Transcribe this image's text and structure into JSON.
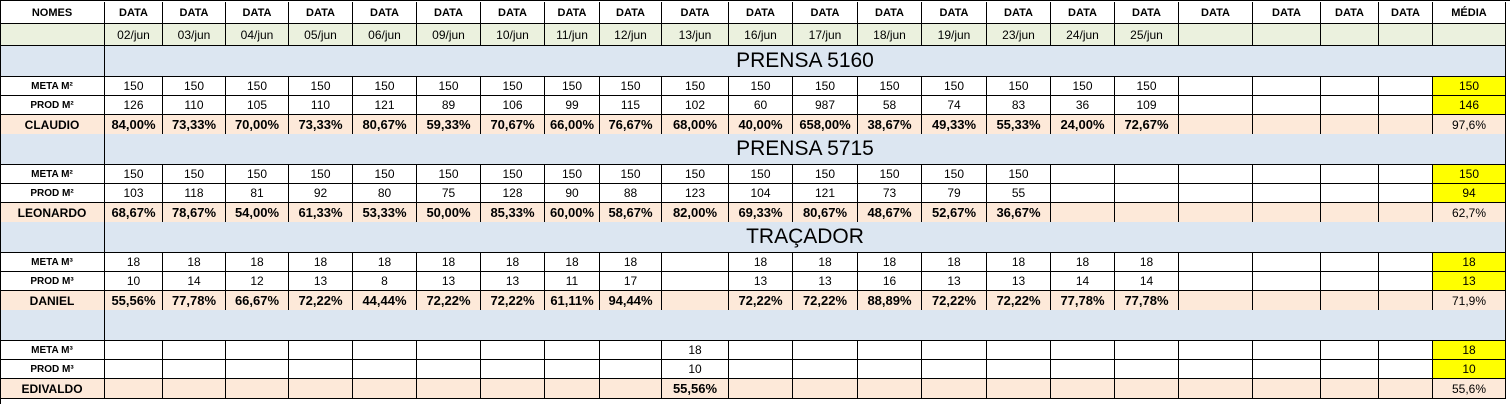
{
  "header": {
    "names_label": "NOMES",
    "date_labels": [
      "DATA",
      "DATA",
      "DATA",
      "DATA",
      "DATA",
      "DATA",
      "DATA",
      "DATA",
      "DATA",
      "DATA",
      "DATA",
      "DATA",
      "DATA",
      "DATA",
      "DATA",
      "DATA",
      "DATA",
      "DATA",
      "DATA",
      "DATA",
      "DATA"
    ],
    "average_label": "MÉDIA",
    "dates": [
      "02/jun",
      "03/jun",
      "04/jun",
      "05/jun",
      "06/jun",
      "09/jun",
      "10/jun",
      "11/jun",
      "12/jun",
      "13/jun",
      "16/jun",
      "17/jun",
      "18/jun",
      "19/jun",
      "23/jun",
      "24/jun",
      "25/jun",
      "",
      "",
      "",
      ""
    ]
  },
  "colors": {
    "header_green": "#ebf1de",
    "section_blue": "#dce6f1",
    "result_peach": "#fde9d9",
    "average_yellow": "#ffff00"
  },
  "sections": [
    {
      "title": "PRENSA 5160",
      "meta_label": "META M²",
      "prod_label": "PROD M²",
      "operator": "CLAUDIO",
      "meta": [
        "150",
        "150",
        "150",
        "150",
        "150",
        "150",
        "150",
        "150",
        "150",
        "150",
        "150",
        "150",
        "150",
        "150",
        "150",
        "150",
        "150",
        "",
        "",
        "",
        ""
      ],
      "prod": [
        "126",
        "110",
        "105",
        "110",
        "121",
        "89",
        "106",
        "99",
        "115",
        "102",
        "60",
        "987",
        "58",
        "74",
        "83",
        "36",
        "109",
        "",
        "",
        "",
        ""
      ],
      "pct": [
        "84,00%",
        "73,33%",
        "70,00%",
        "73,33%",
        "80,67%",
        "59,33%",
        "70,67%",
        "66,00%",
        "76,67%",
        "68,00%",
        "40,00%",
        "658,00%",
        "38,67%",
        "49,33%",
        "55,33%",
        "24,00%",
        "72,67%",
        "",
        "",
        "",
        ""
      ],
      "avg_meta": "150",
      "avg_prod": "146",
      "avg_pct": "97,6%"
    },
    {
      "title": "PRENSA 5715",
      "meta_label": "META M²",
      "prod_label": "PROD M²",
      "operator": "LEONARDO",
      "meta": [
        "150",
        "150",
        "150",
        "150",
        "150",
        "150",
        "150",
        "150",
        "150",
        "150",
        "150",
        "150",
        "150",
        "150",
        "150",
        "",
        "",
        "",
        "",
        "",
        ""
      ],
      "prod": [
        "103",
        "118",
        "81",
        "92",
        "80",
        "75",
        "128",
        "90",
        "88",
        "123",
        "104",
        "121",
        "73",
        "79",
        "55",
        "",
        "",
        "",
        "",
        "",
        ""
      ],
      "pct": [
        "68,67%",
        "78,67%",
        "54,00%",
        "61,33%",
        "53,33%",
        "50,00%",
        "85,33%",
        "60,00%",
        "58,67%",
        "82,00%",
        "69,33%",
        "80,67%",
        "48,67%",
        "52,67%",
        "36,67%",
        "",
        "",
        "",
        "",
        "",
        ""
      ],
      "avg_meta": "150",
      "avg_prod": "94",
      "avg_pct": "62,7%"
    },
    {
      "title": "TRAÇADOR",
      "meta_label": "META M³",
      "prod_label": "PROD M³",
      "operator": "DANIEL",
      "meta": [
        "18",
        "18",
        "18",
        "18",
        "18",
        "18",
        "18",
        "18",
        "18",
        "",
        "18",
        "18",
        "18",
        "18",
        "18",
        "18",
        "18",
        "",
        "",
        "",
        ""
      ],
      "prod": [
        "10",
        "14",
        "12",
        "13",
        "8",
        "13",
        "13",
        "11",
        "17",
        "",
        "13",
        "13",
        "16",
        "13",
        "13",
        "14",
        "14",
        "",
        "",
        "",
        ""
      ],
      "pct": [
        "55,56%",
        "77,78%",
        "66,67%",
        "72,22%",
        "44,44%",
        "72,22%",
        "72,22%",
        "61,11%",
        "94,44%",
        "",
        "72,22%",
        "72,22%",
        "88,89%",
        "72,22%",
        "72,22%",
        "77,78%",
        "77,78%",
        "",
        "",
        "",
        ""
      ],
      "avg_meta": "18",
      "avg_prod": "13",
      "avg_pct": "71,9%"
    },
    {
      "title": "",
      "meta_label": "META M³",
      "prod_label": "PROD M³",
      "operator": "EDIVALDO",
      "meta": [
        "",
        "",
        "",
        "",
        "",
        "",
        "",
        "",
        "",
        "18",
        "",
        "",
        "",
        "",
        "",
        "",
        "",
        "",
        "",
        "",
        ""
      ],
      "prod": [
        "",
        "",
        "",
        "",
        "",
        "",
        "",
        "",
        "",
        "10",
        "",
        "",
        "",
        "",
        "",
        "",
        "",
        "",
        "",
        "",
        ""
      ],
      "pct": [
        "",
        "",
        "",
        "",
        "",
        "",
        "",
        "",
        "",
        "55,56%",
        "",
        "",
        "",
        "",
        "",
        "",
        "",
        "",
        "",
        "",
        ""
      ],
      "avg_meta": "18",
      "avg_prod": "10",
      "avg_pct": "55,6%"
    }
  ]
}
